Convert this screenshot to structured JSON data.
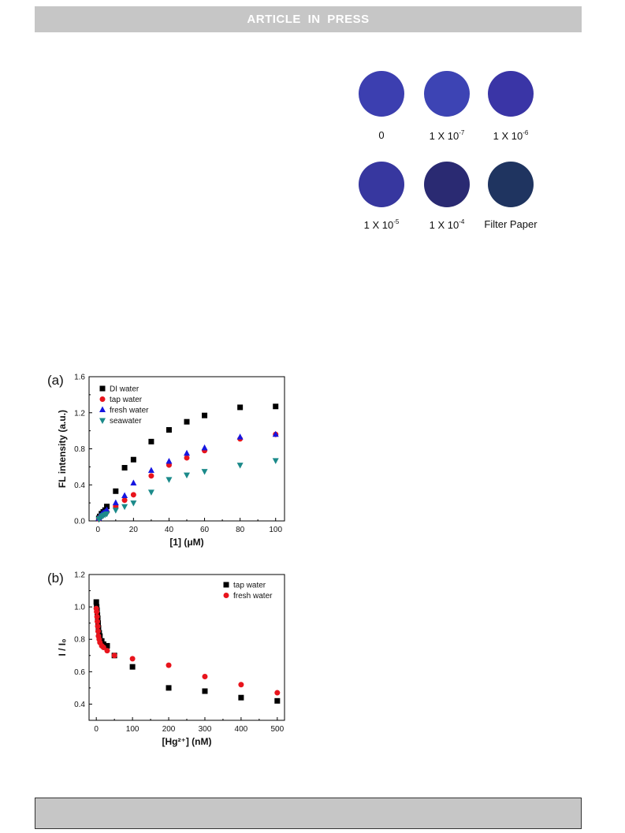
{
  "header": {
    "title": "ARTICLE IN PRESS"
  },
  "discs": [
    {
      "label": "0",
      "exp": "",
      "color": "#3c3fb0"
    },
    {
      "label": "1 X 10",
      "exp": "-7",
      "color": "#3d44b4"
    },
    {
      "label": "1 X 10",
      "exp": "-6",
      "color": "#3a35a6"
    },
    {
      "label": "1 X 10",
      "exp": "-5",
      "color": "#37379f"
    },
    {
      "label": "1 X 10",
      "exp": "-4",
      "color": "#2a2a72"
    },
    {
      "label": "Filter Paper",
      "exp": "",
      "color": "#1f3460"
    }
  ],
  "chart_data": [
    {
      "panel": "(a)",
      "type": "scatter",
      "xlabel": "[1] (μM)",
      "ylabel": "FL intensity (a.u.)",
      "xlim": [
        -5,
        105
      ],
      "ylim": [
        0,
        1.6
      ],
      "xticks": [
        0,
        20,
        40,
        60,
        80,
        100
      ],
      "yticks": [
        0.0,
        0.4,
        0.8,
        1.2,
        1.6
      ],
      "ytick_labels": [
        "0.0",
        "0.4",
        "0.8",
        "1.2",
        "1.6"
      ],
      "legend_position": "top-left",
      "series": [
        {
          "name": "DI water",
          "marker": "square",
          "color": "#000000",
          "x": [
            0.5,
            1,
            2,
            3,
            4,
            5,
            10,
            15,
            20,
            30,
            40,
            50,
            60,
            80,
            100
          ],
          "y": [
            0.03,
            0.05,
            0.08,
            0.1,
            0.12,
            0.16,
            0.33,
            0.59,
            0.68,
            0.88,
            1.01,
            1.1,
            1.17,
            1.26,
            1.27
          ]
        },
        {
          "name": "tap water",
          "marker": "circle",
          "color": "#e8141c",
          "x": [
            0.5,
            1,
            2,
            3,
            4,
            5,
            10,
            15,
            20,
            30,
            40,
            50,
            60,
            80,
            100
          ],
          "y": [
            0.02,
            0.04,
            0.06,
            0.07,
            0.08,
            0.1,
            0.16,
            0.23,
            0.29,
            0.5,
            0.62,
            0.7,
            0.78,
            0.91,
            0.96
          ]
        },
        {
          "name": "fresh water",
          "marker": "triangle-up",
          "color": "#1616e0",
          "x": [
            0.5,
            1,
            2,
            3,
            4,
            5,
            10,
            15,
            20,
            30,
            40,
            50,
            60,
            80,
            100
          ],
          "y": [
            0.03,
            0.05,
            0.07,
            0.09,
            0.1,
            0.12,
            0.2,
            0.28,
            0.42,
            0.56,
            0.66,
            0.75,
            0.81,
            0.93,
            0.96
          ]
        },
        {
          "name": "seawater",
          "marker": "triangle-down",
          "color": "#1b8a8a",
          "x": [
            0.5,
            1,
            2,
            3,
            4,
            5,
            10,
            15,
            20,
            30,
            40,
            50,
            60,
            80,
            100
          ],
          "y": [
            0.02,
            0.03,
            0.05,
            0.06,
            0.07,
            0.08,
            0.12,
            0.16,
            0.2,
            0.32,
            0.46,
            0.51,
            0.55,
            0.62,
            0.67
          ]
        }
      ]
    },
    {
      "panel": "(b)",
      "type": "scatter",
      "xlabel": "[Hg²⁺] (nM)",
      "ylabel": "I / I₀",
      "xlim": [
        -20,
        520
      ],
      "ylim": [
        0.3,
        1.2
      ],
      "xticks": [
        0,
        100,
        200,
        300,
        400,
        500
      ],
      "yticks": [
        0.4,
        0.6,
        0.8,
        1.0,
        1.2
      ],
      "ytick_labels": [
        "0.4",
        "0.6",
        "0.8",
        "1.0",
        "1.2"
      ],
      "legend_position": "top-right",
      "series": [
        {
          "name": "tap water",
          "marker": "square",
          "color": "#000000",
          "x": [
            0,
            1,
            2,
            3,
            4,
            5,
            6,
            8,
            10,
            15,
            20,
            30,
            50,
            100,
            200,
            300,
            400,
            500
          ],
          "y": [
            1.03,
            1.0,
            0.98,
            0.95,
            0.93,
            0.9,
            0.87,
            0.84,
            0.82,
            0.79,
            0.77,
            0.76,
            0.7,
            0.63,
            0.5,
            0.48,
            0.44,
            0.42
          ]
        },
        {
          "name": "fresh water",
          "marker": "circle",
          "color": "#e8141c",
          "x": [
            0,
            1,
            2,
            3,
            4,
            5,
            6,
            8,
            10,
            15,
            20,
            30,
            50,
            100,
            200,
            300,
            400,
            500
          ],
          "y": [
            0.99,
            0.97,
            0.94,
            0.91,
            0.88,
            0.85,
            0.82,
            0.8,
            0.78,
            0.76,
            0.75,
            0.73,
            0.7,
            0.68,
            0.64,
            0.57,
            0.52,
            0.47
          ]
        }
      ]
    }
  ],
  "footer": {
    "text": ""
  }
}
